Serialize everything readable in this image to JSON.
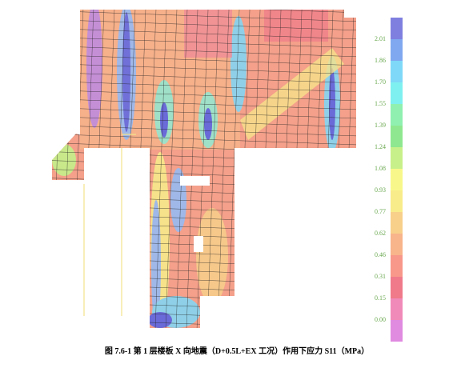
{
  "caption": "图 7.6-1 第 1 层楼板 X 向地震（D+0.5L+EX 工况）作用下应力 S11（MPa）",
  "colorbar": {
    "labels": [
      "2.01",
      "1.86",
      "1.70",
      "1.55",
      "1.39",
      "1.24",
      "1.08",
      "0.93",
      "0.77",
      "0.62",
      "0.46",
      "0.31",
      "0.15",
      "0.00"
    ]
  }
}
